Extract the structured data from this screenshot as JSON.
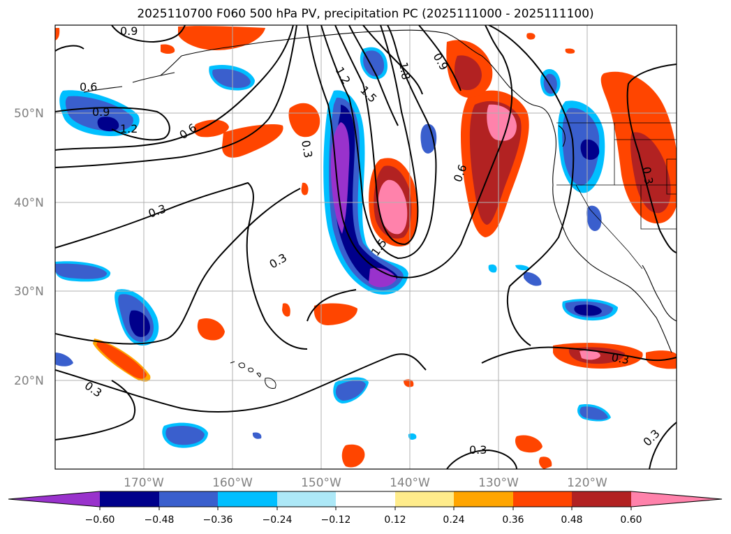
{
  "title": "2025110700 F060 500 hPa PV, precipitation PC (2025111000 - 2025111100)",
  "map": {
    "lon_range": [
      -180,
      -110
    ],
    "lat_range": [
      10,
      60
    ],
    "lat_labels": [
      "20°N",
      "30°N",
      "40°N",
      "50°N"
    ],
    "lon_labels": [
      "170°W",
      "160°W",
      "150°W",
      "140°W",
      "130°W",
      "120°W"
    ],
    "gridlines": true,
    "pv_contour_labels": [
      "0.9",
      "0.6",
      "0.9",
      "1.2",
      "0.6",
      "0.3",
      "0.3",
      "1.2",
      "1.5",
      "1.8",
      "0.9",
      "1.5",
      "0.6",
      "0.3",
      "0.3",
      "0.3",
      "0.3",
      "0.3"
    ]
  },
  "colorbar": {
    "ticks": [
      "−0.60",
      "−0.48",
      "−0.36",
      "−0.24",
      "−0.12",
      "0.12",
      "0.24",
      "0.36",
      "0.48",
      "0.60"
    ],
    "colors": [
      "#9932cc",
      "#00008b",
      "#3a5fcd",
      "#00bfff",
      "#ade8f7",
      "#ffffff",
      "#ffec8b",
      "#ffa500",
      "#ff4500",
      "#b22222",
      "#ff82ab"
    ],
    "extend": "both"
  }
}
